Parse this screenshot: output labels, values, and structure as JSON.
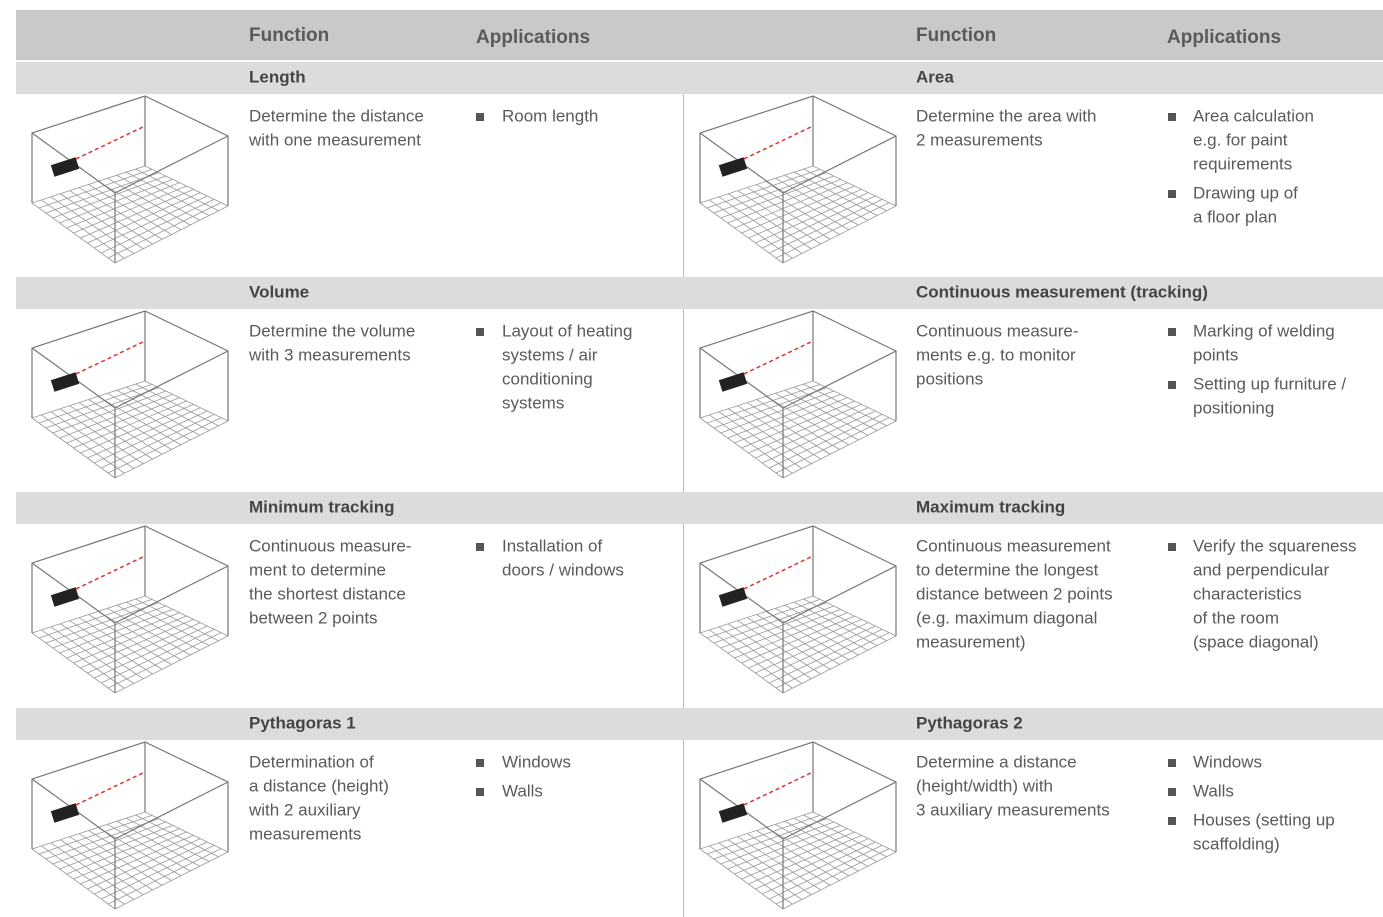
{
  "header": {
    "left": {
      "function": "Function",
      "applications": "Applications"
    },
    "right": {
      "function": "Function",
      "applications": "Applications"
    }
  },
  "rows": [
    {
      "left": {
        "title": "Length",
        "function": [
          "Determine the distance",
          "with one measurement"
        ],
        "applications": [
          [
            "Room length"
          ]
        ]
      },
      "right": {
        "title": "Area",
        "function": [
          "Determine the area with",
          "2 measurements"
        ],
        "applications": [
          [
            "Area calculation",
            "e.g. for paint",
            "requirements"
          ],
          [
            "Drawing up of",
            "a floor plan"
          ]
        ]
      }
    },
    {
      "left": {
        "title": "Volume",
        "function": [
          "Determine the volume",
          "with 3 measurements"
        ],
        "applications": [
          [
            "Layout of heating",
            "systems / air",
            "conditioning",
            "systems"
          ]
        ]
      },
      "right": {
        "title": "Continuous measurement (tracking)",
        "function": [
          "Continuous measure-",
          "ments e.g. to monitor",
          "positions"
        ],
        "applications": [
          [
            "Marking of welding",
            "points"
          ],
          [
            "Setting up furniture /",
            "positioning"
          ]
        ]
      }
    },
    {
      "left": {
        "title": "Minimum tracking",
        "function": [
          "Continuous measure-",
          "ment to determine",
          "the shortest distance",
          "between 2 points"
        ],
        "applications": [
          [
            "Installation of",
            "doors / windows"
          ]
        ]
      },
      "right": {
        "title": "Maximum tracking",
        "function": [
          "Continuous measurement",
          "to determine the longest",
          "distance between 2 points",
          "(e.g. maximum diagonal",
          "measurement)"
        ],
        "applications": [
          [
            "Verify the squareness",
            "and perpendicular",
            "characteristics",
            "of the room",
            "(space diagonal)"
          ]
        ]
      }
    },
    {
      "left": {
        "title": "Pythagoras 1",
        "function": [
          "Determination of",
          "a distance (height)",
          "with 2 auxiliary",
          "measurements"
        ],
        "applications": [
          [
            "Windows"
          ],
          [
            "Walls"
          ]
        ]
      },
      "right": {
        "title": "Pythagoras 2",
        "function": [
          "Determine a distance",
          "(height/width) with",
          "3 auxiliary measurements"
        ],
        "applications": [
          [
            "Windows"
          ],
          [
            "Walls"
          ],
          [
            "Houses (setting up",
            "scaffolding)"
          ]
        ]
      }
    }
  ]
}
